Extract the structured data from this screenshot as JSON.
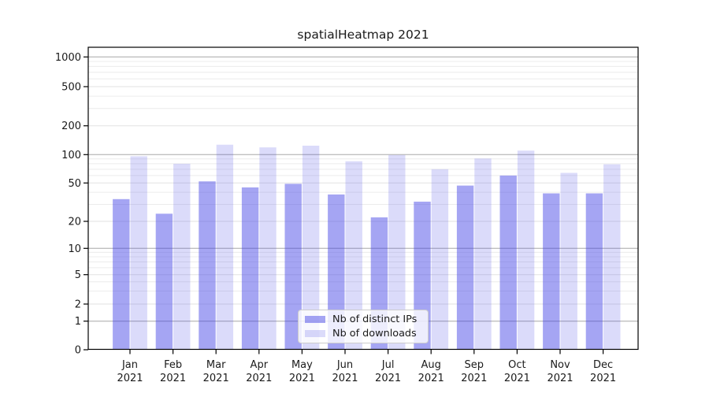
{
  "chart_data": {
    "type": "bar",
    "title": "spatialHeatmap 2021",
    "categories": [
      "Jan",
      "Feb",
      "Mar",
      "Apr",
      "May",
      "Jun",
      "Jul",
      "Aug",
      "Sep",
      "Oct",
      "Nov",
      "Dec"
    ],
    "category_year": "2021",
    "series": [
      {
        "name": "Nb of distinct IPs",
        "color": "rgba(64,64,230,0.47)",
        "values": [
          34,
          24,
          52,
          45,
          49,
          38,
          22,
          32,
          47,
          60,
          39,
          39
        ]
      },
      {
        "name": "Nb of downloads",
        "color": "rgba(64,64,230,0.19)",
        "values": [
          96,
          80,
          127,
          119,
          124,
          85,
          99,
          70,
          91,
          110,
          64,
          79
        ]
      }
    ],
    "xlabel": "",
    "ylabel": "",
    "y_tick_labels": [
      "1000",
      "500",
      "200",
      "100",
      "50",
      "20",
      "10",
      "5",
      "2",
      "1",
      "0"
    ],
    "y_tick_values": [
      1000,
      500,
      200,
      100,
      50,
      20,
      10,
      5,
      2,
      1,
      0
    ],
    "yscale": "log-like with 0 baseline",
    "ylim": [
      0,
      1250
    ],
    "grid": true,
    "legend_position": "bottom-center",
    "colors": {
      "bar_base": "#4040e6",
      "decade_gridline": "#bfbfbf",
      "minor_gridline": "#ececec",
      "axis": "#000000",
      "text": "#1a1a1a"
    }
  }
}
